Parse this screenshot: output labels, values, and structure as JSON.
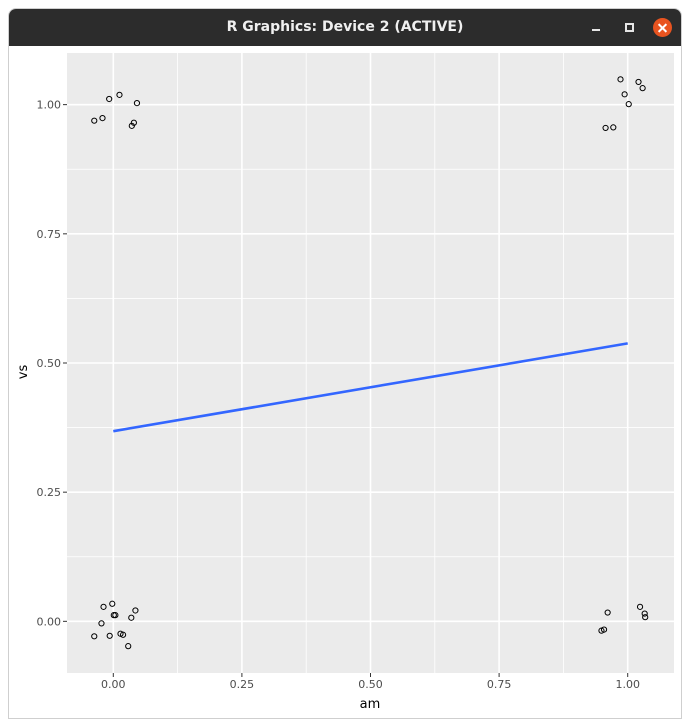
{
  "window": {
    "title": "R Graphics: Device 2 (ACTIVE)"
  },
  "chart_data": {
    "type": "scatter",
    "xlabel": "am",
    "ylabel": "vs",
    "xlim": [
      -0.09,
      1.09
    ],
    "ylim": [
      -0.1,
      1.1
    ],
    "x_ticks": [
      0.0,
      0.25,
      0.5,
      0.75,
      1.0
    ],
    "x_tick_labels": [
      "0.00",
      "0.25",
      "0.50",
      "0.75",
      "1.00"
    ],
    "y_ticks": [
      0.0,
      0.25,
      0.5,
      0.75,
      1.0
    ],
    "y_tick_labels": [
      "0.00",
      "0.25",
      "0.50",
      "0.75",
      "1.00"
    ],
    "grid": true,
    "panel_background": "#ebebeb",
    "gridline_color": "#ffffff",
    "point_color": "#000000",
    "points": [
      {
        "x": -0.037,
        "y": 0.969
      },
      {
        "x": -0.021,
        "y": 0.974
      },
      {
        "x": -0.008,
        "y": 1.011
      },
      {
        "x": 0.012,
        "y": 1.019
      },
      {
        "x": 0.036,
        "y": 0.959
      },
      {
        "x": 0.04,
        "y": 0.965
      },
      {
        "x": 0.046,
        "y": 1.003
      },
      {
        "x": 0.986,
        "y": 1.049
      },
      {
        "x": 0.994,
        "y": 1.02
      },
      {
        "x": 1.002,
        "y": 1.001
      },
      {
        "x": 1.021,
        "y": 1.044
      },
      {
        "x": 1.029,
        "y": 1.032
      },
      {
        "x": 0.957,
        "y": 0.955
      },
      {
        "x": 0.972,
        "y": 0.956
      },
      {
        "x": -0.019,
        "y": 0.028
      },
      {
        "x": -0.002,
        "y": 0.034
      },
      {
        "x": 0.001,
        "y": 0.012
      },
      {
        "x": 0.004,
        "y": 0.012
      },
      {
        "x": 0.043,
        "y": 0.021
      },
      {
        "x": 0.035,
        "y": 0.007
      },
      {
        "x": -0.023,
        "y": -0.004
      },
      {
        "x": -0.037,
        "y": -0.029
      },
      {
        "x": -0.007,
        "y": -0.028
      },
      {
        "x": 0.014,
        "y": -0.024
      },
      {
        "x": 0.019,
        "y": -0.026
      },
      {
        "x": 0.029,
        "y": -0.048
      },
      {
        "x": 0.961,
        "y": 0.017
      },
      {
        "x": 1.024,
        "y": 0.028
      },
      {
        "x": 1.033,
        "y": 0.015
      },
      {
        "x": 1.034,
        "y": 0.008
      },
      {
        "x": 0.954,
        "y": -0.016
      },
      {
        "x": 0.949,
        "y": -0.018
      }
    ],
    "fit_line": {
      "color": "#3366ff",
      "x": [
        0.0,
        1.0
      ],
      "y": [
        0.368,
        0.538
      ]
    }
  }
}
